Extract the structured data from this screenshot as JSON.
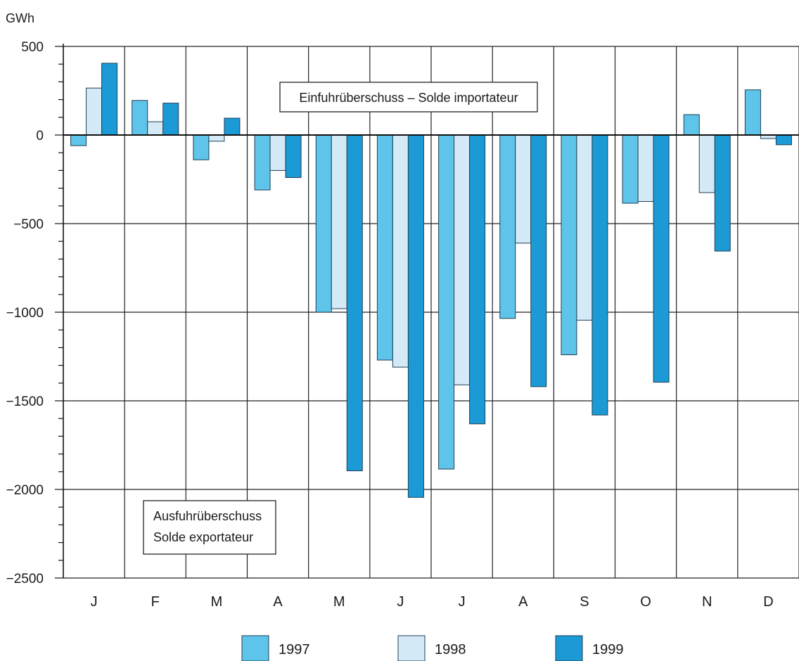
{
  "chart_data": {
    "type": "bar",
    "unit_label": "GWh",
    "categories": [
      "J",
      "F",
      "M",
      "A",
      "M",
      "J",
      "J",
      "A",
      "S",
      "O",
      "N",
      "D"
    ],
    "series": [
      {
        "name": "1997",
        "color": "#5ec4ea",
        "values": [
          -60,
          195,
          -140,
          -310,
          -1000,
          -1270,
          -1885,
          -1035,
          -1240,
          -385,
          115,
          255
        ]
      },
      {
        "name": "1998",
        "color": "#d4eaf7",
        "values": [
          265,
          75,
          -35,
          -200,
          -980,
          -1310,
          -1410,
          -610,
          -1045,
          -375,
          -325,
          -20
        ]
      },
      {
        "name": "1999",
        "color": "#1b9ad6",
        "values": [
          405,
          180,
          95,
          -240,
          -1895,
          -2045,
          -1630,
          -1420,
          -1580,
          -1395,
          -655,
          -55
        ]
      }
    ],
    "ylim": [
      -2500,
      500
    ],
    "yticks": [
      500,
      0,
      -500,
      -1000,
      -1500,
      -2000,
      -2500
    ],
    "grid": true,
    "legend_position": "bottom",
    "annotations": [
      {
        "lines": [
          "Einfuhrüberschuss – Solde importateur"
        ]
      },
      {
        "lines": [
          "Ausfuhrüberschuss",
          "Solde exportateur"
        ]
      }
    ]
  }
}
